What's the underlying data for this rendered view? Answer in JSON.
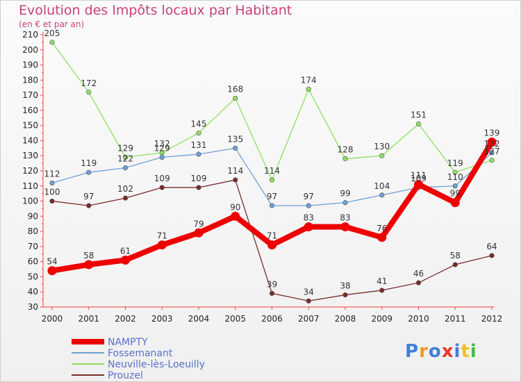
{
  "chart_data": {
    "type": "line",
    "title": "Evolution des Impôts locaux par Habitant",
    "subtitle": "(en € et par an)",
    "x": [
      "2000",
      "2001",
      "2002",
      "2003",
      "2004",
      "2005",
      "2006",
      "2007",
      "2008",
      "2009",
      "2010",
      "2011",
      "2012"
    ],
    "ylim": [
      30,
      210
    ],
    "yticks": [
      30,
      40,
      50,
      60,
      70,
      80,
      90,
      100,
      110,
      120,
      130,
      140,
      150,
      160,
      170,
      180,
      190,
      200,
      210
    ],
    "grid": false,
    "legend_placement": "bottom-left",
    "series": [
      {
        "name": "NAMPTY",
        "color": "#ee0000",
        "values": [
          54,
          58,
          61,
          71,
          79,
          90,
          71,
          83,
          83,
          76,
          111,
          99,
          139
        ]
      },
      {
        "name": "Fossemanant",
        "color": "#6f9fd6",
        "values": [
          112,
          119,
          122,
          129,
          131,
          135,
          97,
          97,
          99,
          104,
          109,
          110,
          132
        ]
      },
      {
        "name": "Neuville-lès-Loeuilly",
        "color": "#8ee060",
        "values": [
          205,
          172,
          129,
          132,
          145,
          168,
          114,
          174,
          128,
          130,
          151,
          119,
          127
        ]
      },
      {
        "name": "Prouzel",
        "color": "#7a2a2a",
        "values": [
          100,
          97,
          102,
          109,
          109,
          114,
          39,
          34,
          38,
          41,
          46,
          58,
          64
        ]
      }
    ]
  },
  "logo": {
    "text": "Proxiti",
    "colors": [
      "#3f7fd8",
      "#f09a1a",
      "#3f7fd8",
      "#e8352a",
      "#3f7fd8",
      "#f0c020",
      "#3fbf3f"
    ]
  }
}
